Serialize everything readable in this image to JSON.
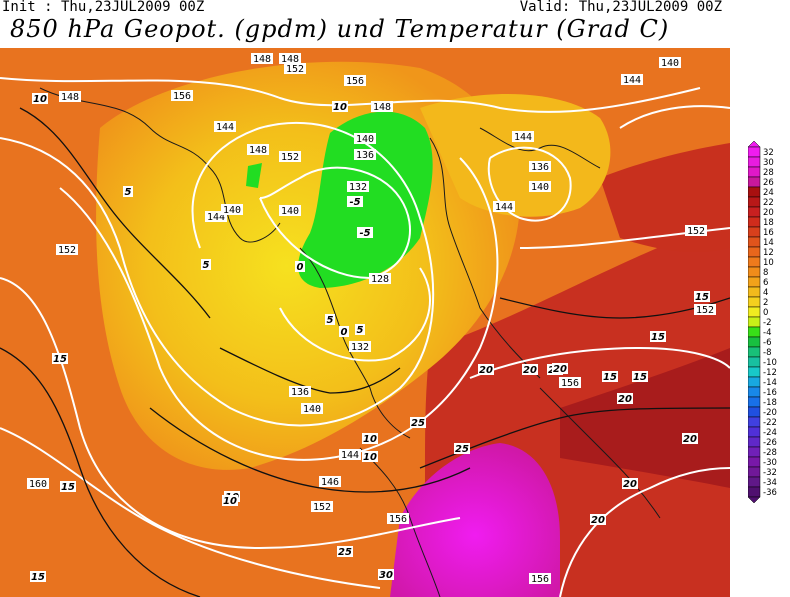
{
  "header": {
    "init": "Init : Thu,23JUL2009 00Z",
    "valid": "Valid: Thu,23JUL2009 00Z",
    "title": "850 hPa Geopot. (gpdm) und Temperatur (Grad C)"
  },
  "colors": {
    "orange_warm": "#e8731f",
    "orange_mid": "#f0961a",
    "yellow_light": "#f5d21e",
    "yellow": "#f0b419",
    "green": "#22dd22",
    "red": "#c83020",
    "darkred": "#a81c1c",
    "magenta": "#e020c0"
  },
  "map_labels": {
    "geopotential": [
      "148",
      "152",
      "156",
      "148",
      "144",
      "140",
      "136",
      "132",
      "128",
      "132",
      "136",
      "140",
      "144",
      "146",
      "152",
      "156",
      "156",
      "160",
      "148",
      "152",
      "144",
      "140",
      "140",
      "136",
      "140",
      "144",
      "152",
      "148",
      "144",
      "148",
      "152",
      "156",
      "140",
      "144",
      "156",
      "152"
    ],
    "temperature": [
      "10",
      "5",
      "5",
      "0",
      "0",
      "-5",
      "-5",
      "5",
      "5",
      "10",
      "10",
      "15",
      "15",
      "15",
      "20",
      "20",
      "20",
      "25",
      "25",
      "30",
      "15",
      "15",
      "15",
      "20",
      "20",
      "10",
      "10",
      "10",
      "15",
      "20",
      "20",
      "20",
      "25"
    ]
  },
  "legend": {
    "values": [
      "32",
      "30",
      "28",
      "26",
      "24",
      "22",
      "20",
      "18",
      "16",
      "14",
      "12",
      "10",
      "8",
      "6",
      "4",
      "2",
      "0",
      "-2",
      "-4",
      "-6",
      "-8",
      "-10",
      "-12",
      "-14",
      "-16",
      "-18",
      "-20",
      "-22",
      "-24",
      "-26",
      "-28",
      "-30",
      "-32",
      "-34",
      "-36"
    ],
    "colors": [
      "#f01cf0",
      "#e81ce0",
      "#e018c8",
      "#c8189c",
      "#a81010",
      "#b81818",
      "#c82020",
      "#d02c1c",
      "#d8401c",
      "#e0541c",
      "#e8661c",
      "#ee7a1c",
      "#f08c1a",
      "#f2a21a",
      "#f2ba1c",
      "#f4d01e",
      "#f0ec20",
      "#c8f018",
      "#38e018",
      "#18c040",
      "#18c078",
      "#18c0a0",
      "#18c8c8",
      "#18a8e0",
      "#1888e8",
      "#1870e8",
      "#2050e0",
      "#4040e0",
      "#5030d8",
      "#6028c8",
      "#7020b8",
      "#7818a8",
      "#701898",
      "#601888",
      "#501070"
    ]
  }
}
